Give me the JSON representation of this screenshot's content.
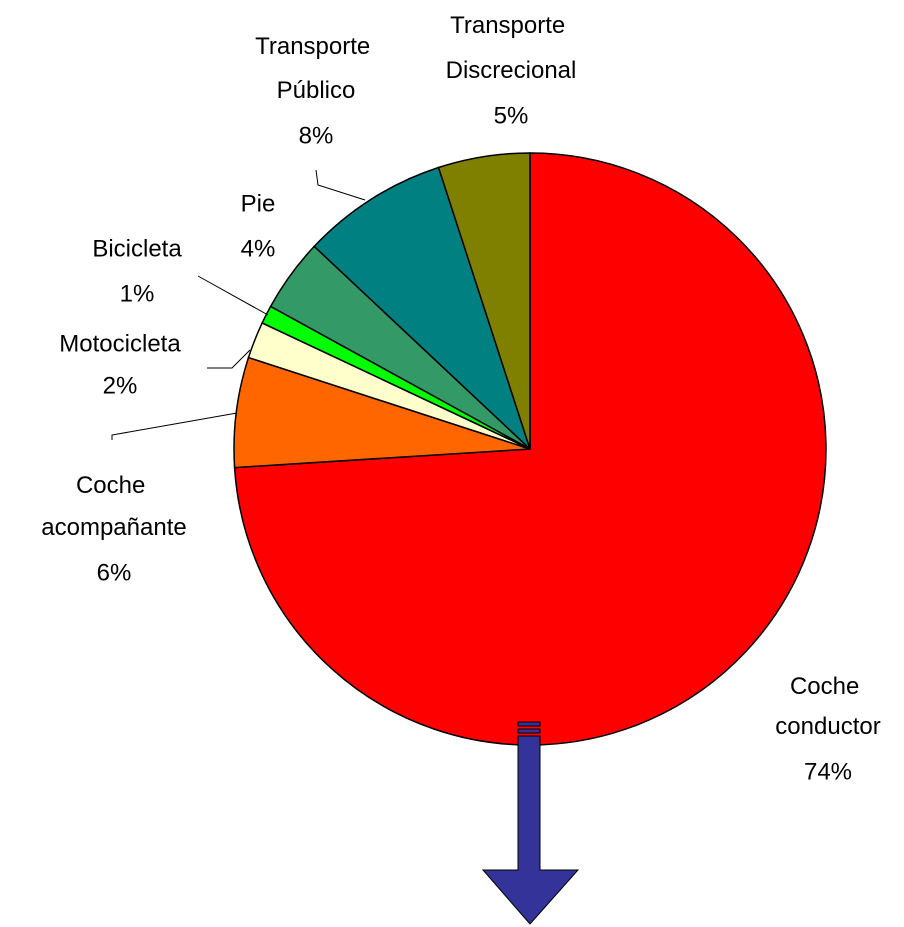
{
  "chart_data": {
    "type": "pie",
    "categories": [
      "Coche conductor",
      "Coche acompañante",
      "Motocicleta",
      "Bicicleta",
      "Pie",
      "Transporte Público",
      "Transporte Discrecional"
    ],
    "values": [
      74,
      6,
      2,
      1,
      4,
      8,
      5
    ],
    "value_labels": [
      "74%",
      "6%",
      "2%",
      "1%",
      "4%",
      "8%",
      "5%"
    ],
    "colors": [
      "#ff0000",
      "#ff6600",
      "#ffffcc",
      "#00ff00",
      "#339966",
      "#008080",
      "#808000"
    ]
  }
}
